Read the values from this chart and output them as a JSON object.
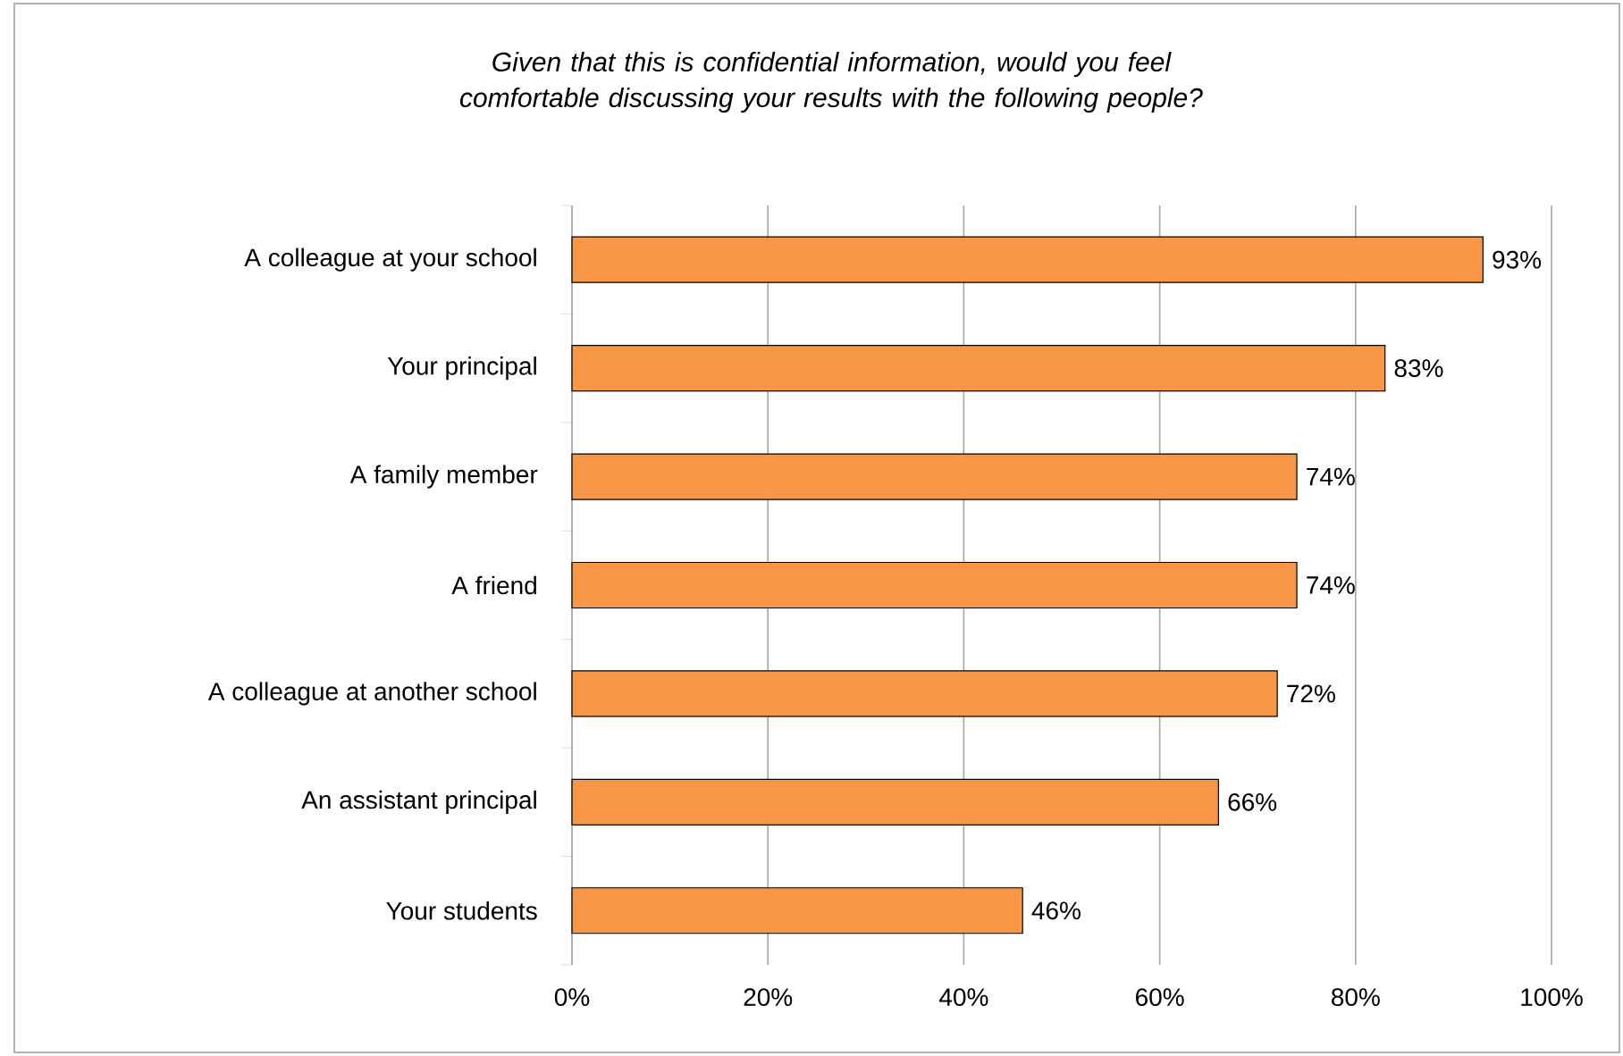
{
  "chart_data": {
    "type": "bar",
    "orientation": "horizontal",
    "title": "Given that this is confidential information, would you feel comfortable discussing your results with the following people?",
    "categories": [
      "A colleague at your school",
      "Your principal",
      "A family member",
      "A friend",
      "A colleague at another school",
      "An assistant principal",
      "Your students"
    ],
    "values": [
      93,
      83,
      74,
      74,
      72,
      66,
      46
    ],
    "value_labels": [
      "93%",
      "83%",
      "74%",
      "74%",
      "72%",
      "66%",
      "46%"
    ],
    "color": "#f79646",
    "xlim": [
      0,
      100
    ],
    "xticks": [
      {
        "value": 0,
        "label": "0%"
      },
      {
        "value": 20,
        "label": "20%"
      },
      {
        "value": 40,
        "label": "40%"
      },
      {
        "value": 60,
        "label": "60%"
      },
      {
        "value": 80,
        "label": "80%"
      },
      {
        "value": 100,
        "label": "100%"
      }
    ],
    "grid": "x"
  }
}
